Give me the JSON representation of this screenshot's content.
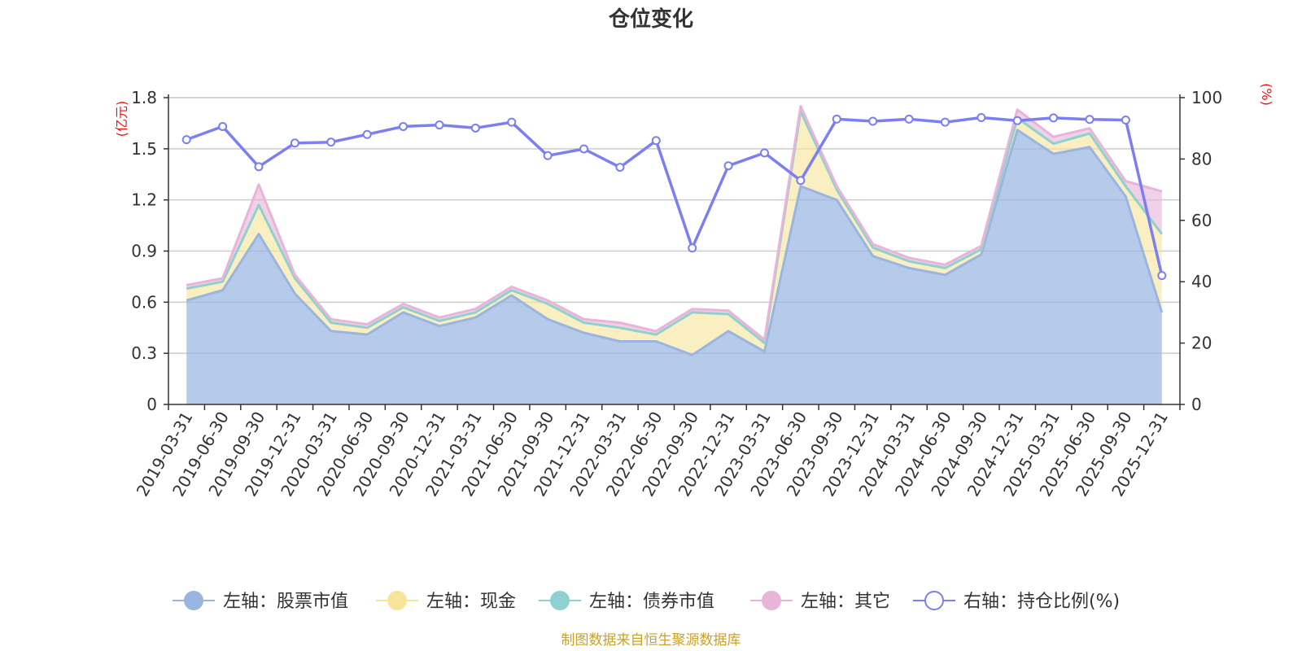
{
  "colors": {
    "stock": "#9ab5e0",
    "cash": "#f7e59a",
    "bond": "#8fd1d1",
    "other": "#e8b4d8",
    "ratio": "#7b7ff0",
    "grid": "#cccccc",
    "unit": "#ee1111",
    "source": "#c9a227"
  },
  "chart_data": {
    "type": "area",
    "title": "仓位变化",
    "left_unit": "(亿元)",
    "right_unit": "(%)",
    "y_left_range": [
      0,
      1.8
    ],
    "y_left_ticks": [
      "0",
      "0.3",
      "0.6",
      "0.9",
      "1.2",
      "1.5",
      "1.8"
    ],
    "y_right_range": [
      0,
      100
    ],
    "y_right_ticks": [
      "0",
      "20",
      "40",
      "60",
      "80",
      "100"
    ],
    "grid": true,
    "legend_position": "bottom",
    "categories": [
      "2019-03-31",
      "2019-06-30",
      "2019-09-30",
      "2019-12-31",
      "2020-03-31",
      "2020-06-30",
      "2020-09-30",
      "2020-12-31",
      "2021-03-31",
      "2021-06-30",
      "2021-09-30",
      "2021-12-31",
      "2022-03-31",
      "2022-06-30",
      "2022-09-30",
      "2022-12-31",
      "2023-03-31",
      "2023-06-30",
      "2023-09-30",
      "2023-12-31",
      "2024-03-31",
      "2024-06-30",
      "2024-09-30",
      "2024-12-31",
      "2025-03-31",
      "2025-06-30",
      "2025-09-30",
      "2025-12-31"
    ],
    "series": [
      {
        "name": "左轴：股票市值",
        "axis": "left",
        "stack": true,
        "values": [
          0.61,
          0.67,
          1.0,
          0.65,
          0.43,
          0.41,
          0.54,
          0.46,
          0.51,
          0.64,
          0.5,
          0.42,
          0.37,
          0.37,
          0.29,
          0.43,
          0.31,
          1.28,
          1.2,
          0.87,
          0.8,
          0.76,
          0.88,
          1.61,
          1.47,
          1.51,
          1.22,
          0.54
        ]
      },
      {
        "name": "左轴：现金",
        "axis": "left",
        "stack": true,
        "values": [
          0.07,
          0.05,
          0.17,
          0.09,
          0.05,
          0.04,
          0.03,
          0.03,
          0.03,
          0.03,
          0.09,
          0.06,
          0.08,
          0.04,
          0.25,
          0.1,
          0.05,
          0.44,
          0.06,
          0.05,
          0.04,
          0.04,
          0.03,
          0.07,
          0.06,
          0.08,
          0.06,
          0.46
        ]
      },
      {
        "name": "左轴：债券市值",
        "axis": "left",
        "stack": true,
        "values": [
          0,
          0,
          0,
          0,
          0,
          0,
          0,
          0,
          0,
          0,
          0,
          0,
          0,
          0,
          0,
          0,
          0,
          0,
          0,
          0,
          0,
          0,
          0,
          0,
          0,
          0,
          0,
          0
        ]
      },
      {
        "name": "左轴：其它",
        "axis": "left",
        "stack": true,
        "values": [
          0.02,
          0.02,
          0.12,
          0.02,
          0.02,
          0.02,
          0.02,
          0.02,
          0.02,
          0.02,
          0.02,
          0.02,
          0.03,
          0.02,
          0.02,
          0.02,
          0.02,
          0.03,
          0.02,
          0.02,
          0.02,
          0.02,
          0.02,
          0.05,
          0.04,
          0.03,
          0.03,
          0.25
        ]
      },
      {
        "name": "右轴：持仓比例(%)",
        "axis": "right",
        "type": "line",
        "values": [
          86.3,
          90.6,
          77.5,
          85.2,
          85.5,
          88.0,
          90.6,
          91.1,
          90.1,
          92.0,
          81.1,
          83.3,
          77.3,
          86.0,
          51.0,
          77.8,
          82.0,
          73.0,
          93.0,
          92.3,
          93.0,
          92.0,
          93.5,
          92.5,
          93.4,
          92.9,
          92.7,
          42.0
        ]
      }
    ],
    "source_note": "制图数据来自恒生聚源数据库"
  }
}
